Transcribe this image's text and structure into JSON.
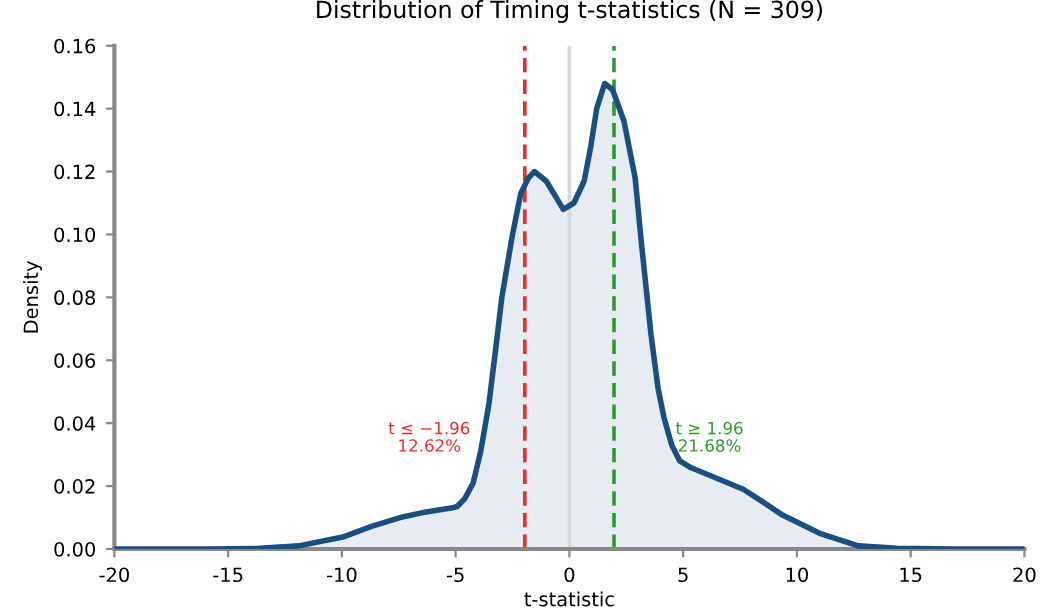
{
  "chart_data": {
    "type": "area",
    "title": "Distribution of Timing t-statistics (N = 309)",
    "xlabel": "t-statistic",
    "ylabel": "Density",
    "series": [
      {
        "color": "#1b4f7f",
        "x": [
          -20,
          -16,
          -13.6,
          -11.9,
          -9.96,
          -8.7,
          -7.44,
          -6.3,
          -5.2,
          -4.93,
          -4.6,
          -4.23,
          -3.9,
          -3.54,
          -3.25,
          -2.97,
          -2.5,
          -2.14,
          -1.8,
          -1.53,
          -1.02,
          -0.6,
          -0.27,
          0.2,
          0.65,
          0.94,
          1.2,
          1.55,
          1.9,
          2.4,
          2.89,
          3.17,
          3.59,
          3.9,
          4.15,
          4.5,
          4.85,
          5.3,
          5.97,
          7.64,
          8.5,
          9.32,
          11.0,
          12.7,
          14.4,
          17,
          20
        ],
        "values": [
          0,
          0,
          0.0002,
          0.001,
          0.0038,
          0.0072,
          0.01,
          0.0118,
          0.013,
          0.0135,
          0.016,
          0.021,
          0.031,
          0.046,
          0.063,
          0.08,
          0.1,
          0.113,
          0.118,
          0.12,
          0.117,
          0.112,
          0.108,
          0.11,
          0.117,
          0.128,
          0.14,
          0.148,
          0.146,
          0.136,
          0.118,
          0.097,
          0.068,
          0.051,
          0.042,
          0.033,
          0.028,
          0.026,
          0.024,
          0.019,
          0.015,
          0.011,
          0.005,
          0.001,
          0.0002,
          0,
          0
        ]
      }
    ],
    "xlim": [
      -20,
      20
    ],
    "xticks": [
      -20,
      -15,
      -10,
      -5,
      0,
      5,
      10,
      15,
      20
    ],
    "ylim": [
      0,
      0.16
    ],
    "yticks": [
      {
        "value": 0,
        "label": "0.00"
      },
      {
        "value": 0.02,
        "label": "0.02"
      },
      {
        "value": 0.04,
        "label": "0.04"
      },
      {
        "value": 0.06,
        "label": "0.06"
      },
      {
        "value": 0.08,
        "label": "0.08"
      },
      {
        "value": 0.1,
        "label": "0.10"
      },
      {
        "value": 0.12,
        "label": "0.12"
      },
      {
        "value": 0.14,
        "label": "0.14"
      },
      {
        "value": 0.16,
        "label": "0.16"
      }
    ],
    "ref_lines": [
      {
        "axis": "x",
        "value": -1.96,
        "label": "t ≤ −1.96\n12.62%",
        "color": "#e8302a",
        "line_style": "dashed"
      },
      {
        "axis": "x",
        "value": 0,
        "color": "#d9d9d9",
        "line_style": "solid"
      },
      {
        "axis": "x",
        "value": 1.96,
        "label": "t ≥ 1.96\n21.68%",
        "color": "#2e9a2e",
        "line_style": "dashed"
      }
    ],
    "grid": false,
    "legend": false
  }
}
